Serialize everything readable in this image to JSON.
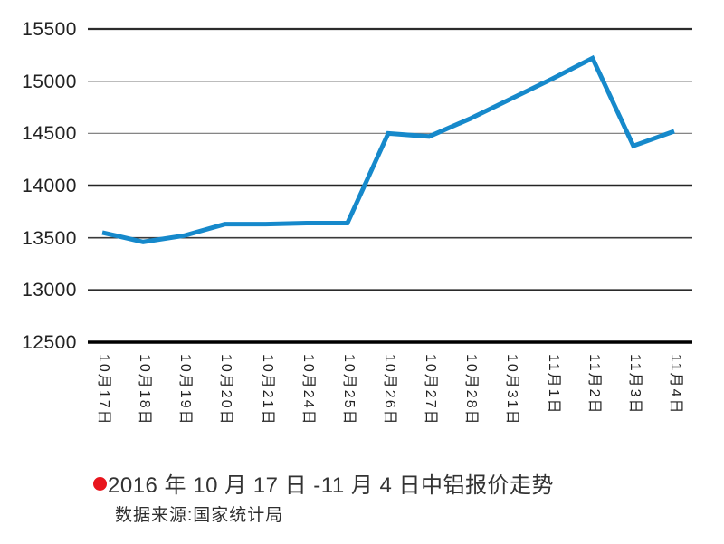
{
  "chart": {
    "caption": "2016 年 10 月 17 日 -11 月 4 日中铝报价走势",
    "source": "数据来源:国家统计局",
    "bullet_color": "#e8151d"
  },
  "chart_data": {
    "type": "line",
    "title": "2016年10月17日-11月4日中铝报价走势",
    "categories": [
      "10月17日",
      "10月18日",
      "10月19日",
      "10月20日",
      "10月21日",
      "10月24日",
      "10月25日",
      "10月26日",
      "10月27日",
      "10月28日",
      "10月31日",
      "11月1日",
      "11月2日",
      "11月3日",
      "11月4日"
    ],
    "values": [
      13550,
      13460,
      13520,
      13630,
      13630,
      13640,
      13640,
      14500,
      14470,
      14640,
      14830,
      15020,
      15220,
      14380,
      14520
    ],
    "xlabel": "",
    "ylabel": "",
    "ylim": [
      12500,
      15500
    ],
    "ytick_step": 500,
    "yticks": [
      {
        "label": "15500",
        "value": 15500,
        "weight": 2.2,
        "color": "#2c2c2c"
      },
      {
        "label": "15000",
        "value": 15000,
        "weight": 1.4,
        "color": "#4d4d4d"
      },
      {
        "label": "14500",
        "value": 14500,
        "weight": 1.2,
        "color": "#757575"
      },
      {
        "label": "14000",
        "value": 14000,
        "weight": 2.4,
        "color": "#242424"
      },
      {
        "label": "13500",
        "value": 13500,
        "weight": 1.6,
        "color": "#3a3a3a"
      },
      {
        "label": "13000",
        "value": 13000,
        "weight": 2.0,
        "color": "#2a2a2a"
      },
      {
        "label": "12500",
        "value": 12500,
        "weight": 3.6,
        "color": "#000000"
      }
    ],
    "grid": true,
    "legend_position": "none",
    "x_label_rotation_deg": 90,
    "line_color": "#1689cb",
    "line_width": 5
  }
}
